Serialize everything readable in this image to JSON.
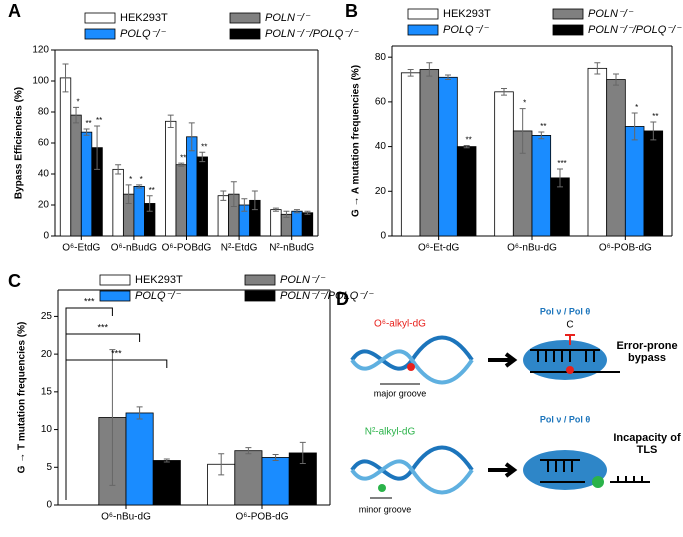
{
  "chart_data": [
    {
      "type": "bar",
      "panel": "A",
      "ylabel": "Bypass Efficiencies (%)",
      "categories": [
        "O⁶-EtdG",
        "O⁶-nBudG",
        "O⁶-POBdG",
        "N²-EtdG",
        "N²-nBudG"
      ],
      "series": [
        {
          "name": "HEK293T",
          "color": "#ffffff",
          "values": [
            102,
            43,
            74,
            26,
            17
          ],
          "errors": [
            9,
            3,
            4,
            3,
            1
          ],
          "significance": [
            null,
            null,
            null,
            null,
            null
          ]
        },
        {
          "name": "POLN⁻/⁻",
          "color": "#808080",
          "values": [
            78,
            27,
            46,
            27,
            14
          ],
          "errors": [
            5,
            6,
            1,
            8,
            2
          ],
          "significance": [
            "*",
            "*",
            "**",
            null,
            null
          ]
        },
        {
          "name": "POLQ⁻/⁻",
          "color": "#1a8cff",
          "values": [
            67,
            32,
            64,
            20,
            16
          ],
          "errors": [
            2,
            1,
            9,
            4,
            1
          ],
          "significance": [
            "**",
            "*",
            null,
            null,
            null
          ]
        },
        {
          "name": "POLN⁻/⁻/POLQ⁻/⁻",
          "color": "#000000",
          "values": [
            57,
            21,
            51,
            23,
            15
          ],
          "errors": [
            14,
            5,
            3,
            6,
            1
          ],
          "significance": [
            "**",
            "**",
            "**",
            null,
            null
          ]
        }
      ],
      "ylim": [
        0,
        120
      ],
      "yticks": [
        0,
        20,
        40,
        60,
        80,
        100,
        120
      ]
    },
    {
      "type": "bar",
      "panel": "B",
      "ylabel": "G → A mutation frequencies (%)",
      "categories": [
        "O⁶-Et-dG",
        "O⁶-nBu-dG",
        "O⁶-POB-dG"
      ],
      "series": [
        {
          "name": "HEK293T",
          "color": "#ffffff",
          "values": [
            73,
            64.5,
            75
          ],
          "errors": [
            1.5,
            1.5,
            2.5
          ],
          "significance": [
            null,
            null,
            null
          ]
        },
        {
          "name": "POLN⁻/⁻",
          "color": "#808080",
          "values": [
            74.5,
            47,
            70
          ],
          "errors": [
            3,
            10,
            2.5
          ],
          "significance": [
            null,
            "*",
            null
          ]
        },
        {
          "name": "POLQ⁻/⁻",
          "color": "#1a8cff",
          "values": [
            71,
            45,
            49
          ],
          "errors": [
            1,
            1.5,
            6
          ],
          "significance": [
            null,
            "**",
            "*"
          ]
        },
        {
          "name": "POLN⁻/⁻/POLQ⁻/⁻",
          "color": "#000000",
          "values": [
            40,
            26,
            47
          ],
          "errors": [
            0.5,
            4,
            4
          ],
          "significance": [
            "**",
            "***",
            "**"
          ]
        }
      ],
      "ylim": [
        0,
        85
      ],
      "yticks": [
        0,
        20,
        40,
        60,
        80
      ]
    },
    {
      "type": "bar",
      "panel": "C",
      "ylabel": "G → T mutation frequencies (%)",
      "categories": [
        "O⁶-nBu-dG",
        "O⁶-POB-dG"
      ],
      "series": [
        {
          "name": "HEK293T",
          "color": "#ffffff",
          "values": [
            null,
            5.4
          ],
          "errors": [
            null,
            1.4
          ]
        },
        {
          "name": "POLN⁻/⁻",
          "color": "#808080",
          "values": [
            11.6,
            7.2
          ],
          "errors": [
            9,
            0.4
          ]
        },
        {
          "name": "POLQ⁻/⁻",
          "color": "#1a8cff",
          "values": [
            12.2,
            6.3
          ],
          "errors": [
            0.8,
            0.4
          ]
        },
        {
          "name": "POLN⁻/⁻/POLQ⁻/⁻",
          "color": "#000000",
          "values": [
            5.9,
            6.9
          ],
          "errors": [
            0.2,
            1.4
          ]
        }
      ],
      "annotations": [
        "***",
        "***",
        "***"
      ],
      "ylim": [
        0,
        28.5
      ],
      "yticks": [
        0,
        5,
        10,
        15,
        20,
        25
      ]
    }
  ],
  "diagram": {
    "panel": "D",
    "top": {
      "lesion": "O⁶-alkyl-dG",
      "groove": "major groove",
      "polymerase": "Pol ν / Pol θ",
      "base": "C",
      "outcome": "Error-prone bypass"
    },
    "bottom": {
      "lesion": "N²-alkyl-dG",
      "groove": "minor groove",
      "polymerase": "Pol ν / Pol θ",
      "outcome": "Incapacity of TLS"
    }
  }
}
